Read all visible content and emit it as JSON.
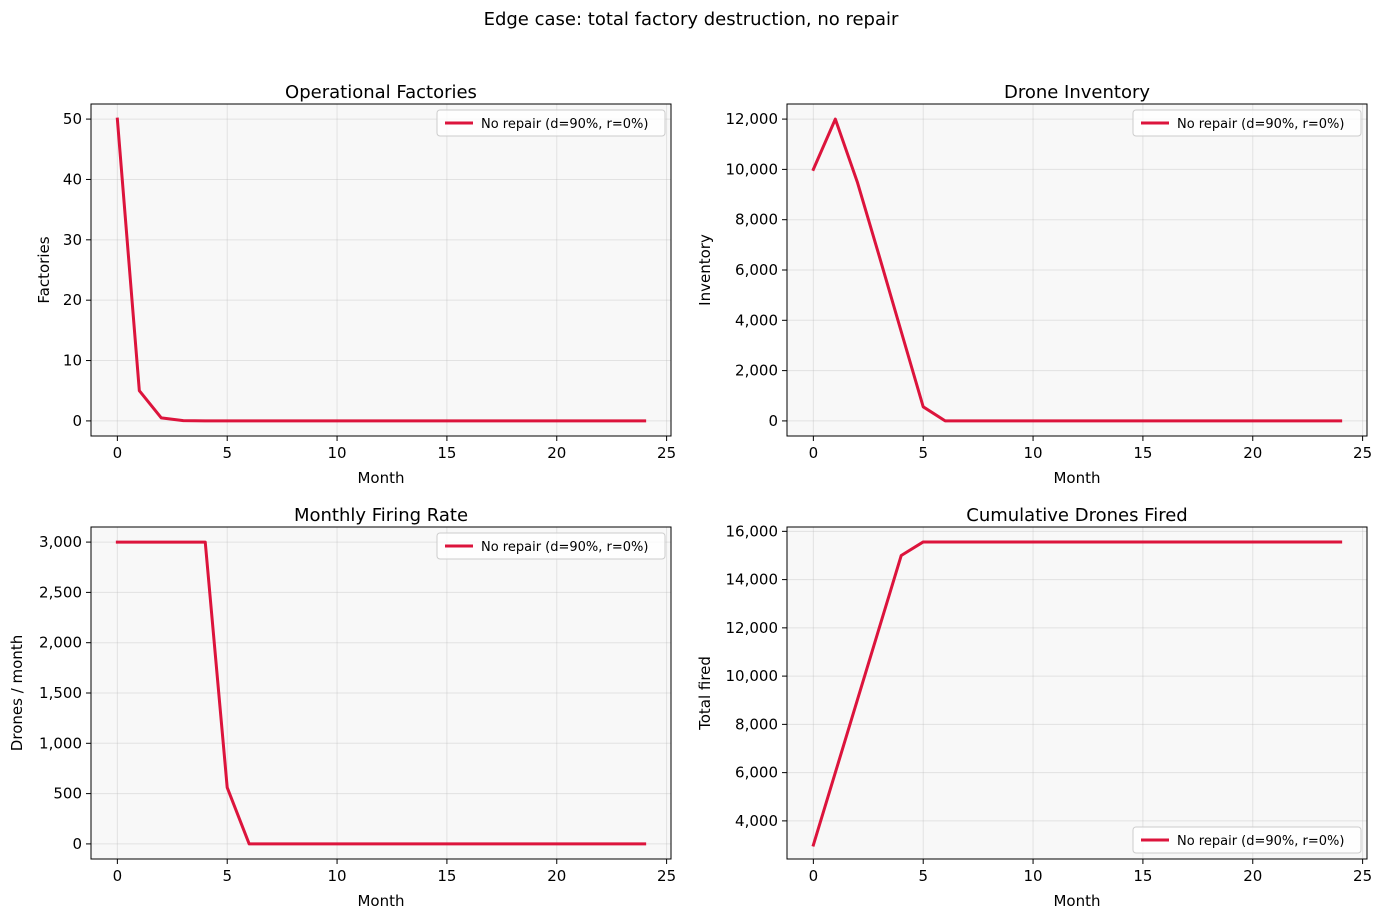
{
  "figure": {
    "title": "Edge case: total factory destruction, no repair",
    "series_color": "#dc143c"
  },
  "chart_data": [
    {
      "type": "line",
      "title": "Operational Factories",
      "xlabel": "Month",
      "ylabel": "Factories",
      "xlim": [
        -1.2,
        25.2
      ],
      "ylim": [
        -2.5,
        52.5
      ],
      "xticks": [
        0,
        5,
        10,
        15,
        20,
        25
      ],
      "yticks": [
        0,
        10,
        20,
        30,
        40,
        50
      ],
      "ytick_labels": [
        "0",
        "10",
        "20",
        "30",
        "40",
        "50"
      ],
      "grid": true,
      "legend_position": "upper-right",
      "series": [
        {
          "name": "No repair (d=90%, r=0%)",
          "x": [
            0,
            1,
            2,
            3,
            4,
            5,
            6,
            7,
            8,
            9,
            10,
            11,
            12,
            13,
            14,
            15,
            16,
            17,
            18,
            19,
            20,
            21,
            22,
            23,
            24
          ],
          "y": [
            50,
            5,
            0.5,
            0.05,
            0,
            0,
            0,
            0,
            0,
            0,
            0,
            0,
            0,
            0,
            0,
            0,
            0,
            0,
            0,
            0,
            0,
            0,
            0,
            0,
            0
          ]
        }
      ]
    },
    {
      "type": "line",
      "title": "Drone Inventory",
      "xlabel": "Month",
      "ylabel": "Inventory",
      "xlim": [
        -1.2,
        25.2
      ],
      "ylim": [
        -600,
        12600
      ],
      "xticks": [
        0,
        5,
        10,
        15,
        20,
        25
      ],
      "yticks": [
        0,
        2000,
        4000,
        6000,
        8000,
        10000,
        12000
      ],
      "ytick_labels": [
        "0",
        "2,000",
        "4,000",
        "6,000",
        "8,000",
        "10,000",
        "12,000"
      ],
      "grid": true,
      "legend_position": "upper-right",
      "series": [
        {
          "name": "No repair (d=90%, r=0%)",
          "x": [
            0,
            1,
            2,
            3,
            4,
            5,
            6,
            7,
            8,
            9,
            10,
            11,
            12,
            13,
            14,
            15,
            16,
            17,
            18,
            19,
            20,
            21,
            22,
            23,
            24
          ],
          "y": [
            10000,
            12000,
            9500,
            6550,
            3550,
            560,
            0,
            0,
            0,
            0,
            0,
            0,
            0,
            0,
            0,
            0,
            0,
            0,
            0,
            0,
            0,
            0,
            0,
            0,
            0
          ]
        }
      ]
    },
    {
      "type": "line",
      "title": "Monthly Firing Rate",
      "xlabel": "Month",
      "ylabel": "Drones / month",
      "xlim": [
        -1.2,
        25.2
      ],
      "ylim": [
        -150,
        3150
      ],
      "xticks": [
        0,
        5,
        10,
        15,
        20,
        25
      ],
      "yticks": [
        0,
        500,
        1000,
        1500,
        2000,
        2500,
        3000
      ],
      "ytick_labels": [
        "0",
        "500",
        "1,000",
        "1,500",
        "2,000",
        "2,500",
        "3,000"
      ],
      "grid": true,
      "legend_position": "upper-right",
      "series": [
        {
          "name": "No repair (d=90%, r=0%)",
          "x": [
            0,
            1,
            2,
            3,
            4,
            5,
            6,
            7,
            8,
            9,
            10,
            11,
            12,
            13,
            14,
            15,
            16,
            17,
            18,
            19,
            20,
            21,
            22,
            23,
            24
          ],
          "y": [
            3000,
            3000,
            3000,
            3000,
            3000,
            560,
            0,
            0,
            0,
            0,
            0,
            0,
            0,
            0,
            0,
            0,
            0,
            0,
            0,
            0,
            0,
            0,
            0,
            0,
            0
          ]
        }
      ]
    },
    {
      "type": "line",
      "title": "Cumulative Drones Fired",
      "xlabel": "Month",
      "ylabel": "Total fired",
      "xlim": [
        -1.2,
        25.2
      ],
      "ylim": [
        2420,
        16180
      ],
      "xticks": [
        0,
        5,
        10,
        15,
        20,
        25
      ],
      "yticks": [
        4000,
        6000,
        8000,
        10000,
        12000,
        14000,
        16000
      ],
      "ytick_labels": [
        "4,000",
        "6,000",
        "8,000",
        "10,000",
        "12,000",
        "14,000",
        "16,000"
      ],
      "grid": true,
      "legend_position": "lower-right",
      "series": [
        {
          "name": "No repair (d=90%, r=0%)",
          "x": [
            0,
            1,
            2,
            3,
            4,
            5,
            6,
            7,
            8,
            9,
            10,
            11,
            12,
            13,
            14,
            15,
            16,
            17,
            18,
            19,
            20,
            21,
            22,
            23,
            24
          ],
          "y": [
            3000,
            6000,
            9000,
            12000,
            15000,
            15560,
            15560,
            15560,
            15560,
            15560,
            15560,
            15560,
            15560,
            15560,
            15560,
            15560,
            15560,
            15560,
            15560,
            15560,
            15560,
            15560,
            15560,
            15560,
            15560
          ]
        }
      ]
    }
  ]
}
